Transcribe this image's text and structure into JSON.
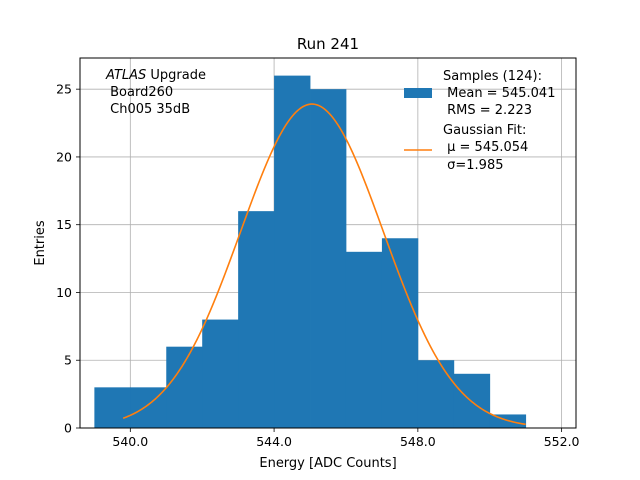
{
  "chart_data": {
    "type": "bar",
    "title": "Run 241",
    "xlabel": "Energy [ADC Counts]",
    "ylabel": "Entries",
    "xlim": [
      538.6,
      552.4
    ],
    "ylim": [
      0,
      27.3
    ],
    "xticks": [
      540.0,
      544.0,
      548.0,
      552.0
    ],
    "xtick_labels": [
      "540.0",
      "544.0",
      "548.0",
      "552.0"
    ],
    "yticks": [
      0,
      5,
      10,
      15,
      20,
      25
    ],
    "ytick_labels": [
      "0",
      "5",
      "10",
      "15",
      "20",
      "25"
    ],
    "grid": true,
    "histogram": {
      "name": "Samples (124)",
      "color": "#1f77b4",
      "bin_edges": [
        539,
        540,
        541,
        542,
        543,
        544,
        545,
        546,
        547,
        548,
        549,
        550,
        551
      ],
      "counts": [
        3,
        3,
        6,
        8,
        16,
        26,
        25,
        13,
        14,
        5,
        4,
        1
      ]
    },
    "fit": {
      "name": "Gaussian Fit",
      "color": "#ff7f0e",
      "type": "gaussian",
      "mu": 545.054,
      "sigma": 1.985,
      "amplitude": 23.9,
      "x_range": [
        539.8,
        551.0
      ]
    },
    "legend": {
      "position": "top-right",
      "entries": [
        {
          "kind": "patch",
          "color": "#1f77b4",
          "lines": [
            "Samples (124):",
            " Mean = 545.041",
            " RMS = 2.223"
          ]
        },
        {
          "kind": "line",
          "color": "#ff7f0e",
          "lines": [
            "Gaussian Fit:",
            " μ = 545.054",
            " σ=1.985"
          ]
        }
      ]
    },
    "annotation": {
      "italic_part": "ATLAS",
      "rest": " Upgrade",
      "line2": " Board260",
      "line3": " Ch005 35dB"
    }
  }
}
